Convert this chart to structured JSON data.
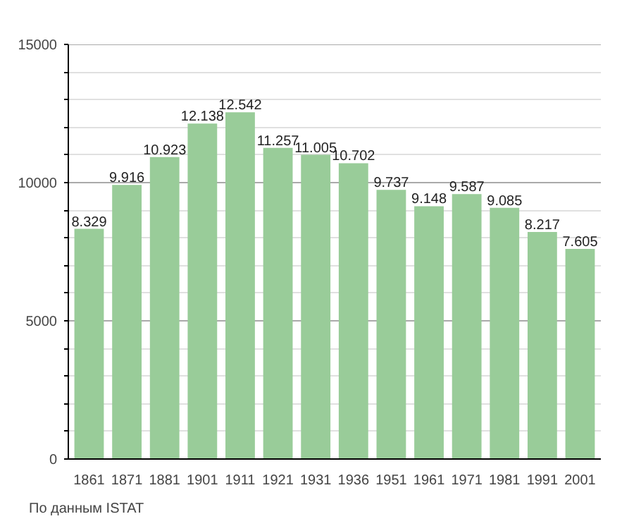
{
  "chart_data": {
    "type": "bar",
    "categories": [
      "1861",
      "1871",
      "1881",
      "1901",
      "1911",
      "1921",
      "1931",
      "1936",
      "1951",
      "1961",
      "1971",
      "1981",
      "1991",
      "2001"
    ],
    "values": [
      8329,
      9916,
      10923,
      12138,
      12542,
      11257,
      11005,
      10702,
      9737,
      9148,
      9587,
      9085,
      8217,
      7605
    ],
    "value_labels": [
      "8.329",
      "9.916",
      "10.923",
      "12.138",
      "12.542",
      "11.257",
      "11.005",
      "10.702",
      "9.737",
      "9.148",
      "9.587",
      "9.085",
      "8.217",
      "7.605"
    ],
    "color": "#99cc99",
    "ylim": [
      0,
      15000
    ],
    "yticks": [
      0,
      {
        "value": 1000,
        "label": null
      },
      {
        "value": 2000,
        "label": null
      },
      {
        "value": 3000,
        "label": null
      },
      {
        "value": 4000,
        "label": null
      },
      5000,
      {
        "value": 6000,
        "label": null
      },
      {
        "value": 7000,
        "label": null
      },
      {
        "value": 8000,
        "label": null
      },
      {
        "value": 9000,
        "label": null
      },
      10000,
      {
        "value": 11000,
        "label": null
      },
      {
        "value": 12000,
        "label": null
      },
      {
        "value": 13000,
        "label": null
      },
      {
        "value": 14000,
        "label": null
      },
      15000
    ],
    "grid": "y",
    "annotations": [
      "По данным ISTAT"
    ]
  }
}
